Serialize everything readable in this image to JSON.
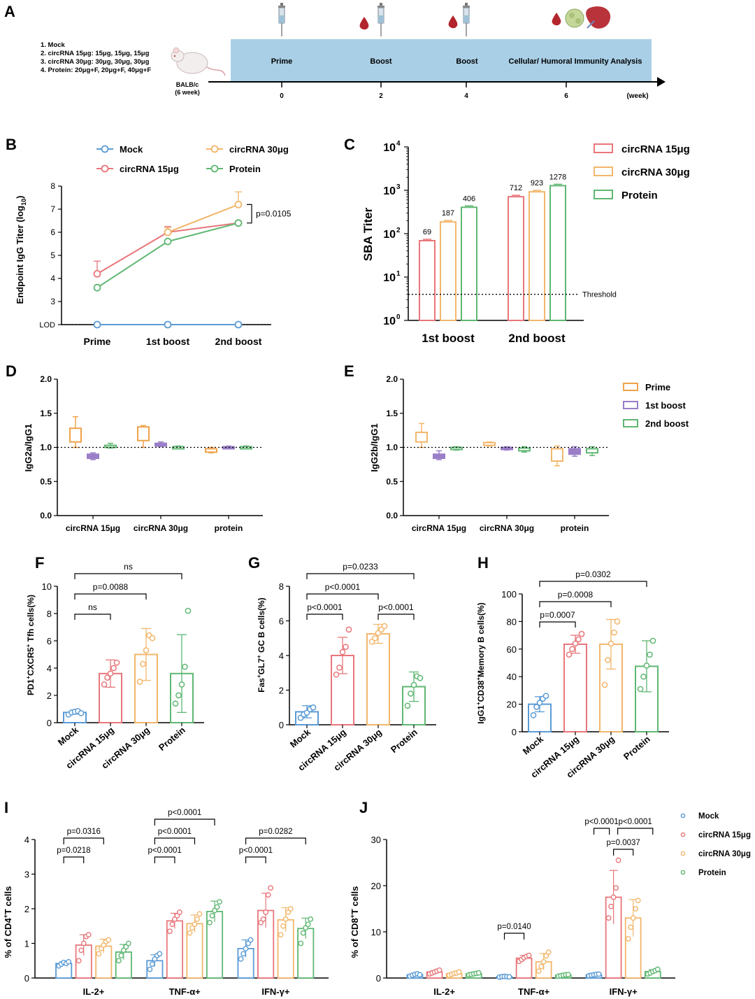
{
  "colors": {
    "mock": "#5b9bd5",
    "c15": "#e8767a",
    "c30": "#f2b66b",
    "protein": "#5fb772",
    "prime": "#f0a34a",
    "boost1": "#9a7ec8",
    "boost2": "#5fb772",
    "timeline": "#a9cfe6"
  },
  "panel_a": {
    "letter": "A",
    "groups": [
      "1. Mock",
      "2. circRNA 15μg: 15μg, 15μg, 15μg",
      "3. circRNA 30μg: 30μg, 30μg, 30μg",
      "4. Protein: 20μg+F, 20μg+F, 40μg+F"
    ],
    "mouse_line1": "BALB/c",
    "mouse_line2": "(6 week)",
    "stages": [
      "Prime",
      "Boost",
      "Boost",
      "Cellular/ Humoral Immunity Analysis"
    ],
    "weeks": [
      "0",
      "2",
      "4",
      "6"
    ],
    "unit": "(week)",
    "icons": [
      "syringe-icon",
      "blood-drop-icon",
      "spleen-icon",
      "lymph-node-icon"
    ]
  },
  "chart_data": [
    {
      "panel": "B",
      "type": "line",
      "x": [
        "Prime",
        "1st boost",
        "2nd boost"
      ],
      "ylabel": "Endpoint IgG Titer (log10)",
      "ylim": [
        2,
        8
      ],
      "lod_label": "LOD",
      "yticks": [
        "3",
        "4",
        "5",
        "6",
        "7",
        "8"
      ],
      "series": [
        {
          "name": "Mock",
          "key": "mock",
          "values": [
            2,
            2,
            2
          ],
          "err": [
            0,
            0,
            0
          ]
        },
        {
          "name": "circRNA 15μg",
          "key": "c15",
          "values": [
            4.2,
            6.0,
            6.4
          ],
          "err": [
            0.55,
            0.25,
            0.05
          ]
        },
        {
          "name": "circRNA 30μg",
          "key": "c30",
          "values": [
            null,
            6.0,
            7.2
          ],
          "err": [
            0,
            0.2,
            0.55
          ]
        },
        {
          "name": "Protein",
          "key": "protein",
          "values": [
            3.6,
            5.6,
            6.4
          ],
          "err": [
            0,
            0,
            0
          ]
        }
      ],
      "annotations": [
        "p=0.0105"
      ]
    },
    {
      "panel": "C",
      "type": "bar",
      "scale": "log",
      "categories": [
        "1st boost",
        "2nd boost"
      ],
      "ylabel": "SBA Titer",
      "ylim": [
        1,
        10000
      ],
      "yticks": [
        "10",
        "10",
        "10",
        "10",
        "10"
      ],
      "yexp": [
        "0",
        "1",
        "2",
        "3",
        "4"
      ],
      "threshold": 4,
      "threshold_label": "Threshold",
      "series": [
        {
          "name": "circRNA 15μg",
          "key": "c15",
          "values": [
            69,
            712
          ],
          "labels": [
            "69",
            "712"
          ]
        },
        {
          "name": "circRNA 30μg",
          "key": "c30",
          "values": [
            187,
            923
          ],
          "labels": [
            "187",
            "923"
          ]
        },
        {
          "name": "Protein",
          "key": "protein",
          "values": [
            406,
            1278
          ],
          "labels": [
            "406",
            "1278"
          ]
        }
      ]
    },
    {
      "panel": "D",
      "type": "box",
      "categories": [
        "circRNA 15μg",
        "circRNA 30μg",
        "protein"
      ],
      "ylabel": "IgG2a/IgG1",
      "ylim": [
        0,
        2
      ],
      "yticks": [
        "0.0",
        "0.5",
        "1.0",
        "1.5",
        "2.0"
      ],
      "reference": 1.0,
      "series": [
        {
          "name": "Prime",
          "key": "prime",
          "boxes": [
            [
              1.0,
              1.08,
              1.28,
              1.45
            ],
            [
              1.0,
              1.1,
              1.3,
              1.32
            ],
            [
              0.92,
              0.93,
              0.98,
              1.0
            ]
          ]
        },
        {
          "name": "1st boost",
          "key": "boost1",
          "boxes": [
            [
              0.82,
              0.84,
              0.9,
              0.92
            ],
            [
              1.01,
              1.02,
              1.06,
              1.08
            ],
            [
              0.99,
              1.0,
              1.01,
              1.02
            ]
          ]
        },
        {
          "name": "2nd boost",
          "key": "boost2",
          "boxes": [
            [
              0.99,
              1.0,
              1.03,
              1.06
            ],
            [
              0.99,
              1.0,
              1.01,
              1.02
            ],
            [
              0.99,
              1.0,
              1.01,
              1.02
            ]
          ]
        }
      ]
    },
    {
      "panel": "E",
      "type": "box",
      "categories": [
        "circRNA 15μg",
        "circRNA 30μg",
        "protein"
      ],
      "ylabel": "IgG2b/IgG1",
      "ylim": [
        0,
        2
      ],
      "yticks": [
        "0.0",
        "0.5",
        "1.0",
        "1.5",
        "2.0"
      ],
      "reference": 1.0,
      "series": [
        {
          "name": "Prime",
          "key": "c30",
          "boxes": [
            [
              1.0,
              1.08,
              1.22,
              1.35
            ],
            [
              1.02,
              1.03,
              1.07,
              1.08
            ],
            [
              0.73,
              0.8,
              0.98,
              1.02
            ]
          ]
        },
        {
          "name": "1st boost",
          "key": "boost1",
          "boxes": [
            [
              0.82,
              0.84,
              0.9,
              0.95
            ],
            [
              0.96,
              0.97,
              1.0,
              1.01
            ],
            [
              0.87,
              0.9,
              0.98,
              1.01
            ]
          ]
        },
        {
          "name": "2nd boost",
          "key": "boost2",
          "boxes": [
            [
              0.96,
              0.97,
              1.0,
              1.01
            ],
            [
              0.93,
              0.95,
              0.99,
              1.01
            ],
            [
              0.88,
              0.92,
              0.98,
              1.01
            ]
          ]
        }
      ]
    },
    {
      "panel": "F",
      "type": "bar",
      "categories": [
        "Mock",
        "circRNA 15μg",
        "circRNA 30μg",
        "Protein"
      ],
      "keys": [
        "mock",
        "c15",
        "c30",
        "protein"
      ],
      "ylabel": "PD1+CXCR5+ Tfh cells(%)",
      "ylim": [
        0,
        10
      ],
      "yticks": [
        "0",
        "2",
        "4",
        "6",
        "8",
        "10"
      ],
      "values": [
        0.75,
        3.6,
        5.0,
        3.6
      ],
      "err": [
        0.12,
        1.0,
        1.9,
        2.85
      ],
      "points": [
        [
          0.6,
          0.75,
          0.8,
          0.85,
          0.7
        ],
        [
          2.8,
          3.3,
          3.6,
          4.0,
          4.4
        ],
        [
          3.0,
          4.3,
          5.3,
          6.4,
          6.2
        ],
        [
          1.4,
          2.0,
          2.8,
          4.1,
          8.2
        ]
      ],
      "comparisons": [
        {
          "a": 0,
          "b": 1,
          "label": "ns"
        },
        {
          "a": 0,
          "b": 2,
          "label": "p=0.0088"
        },
        {
          "a": 0,
          "b": 3,
          "label": "ns"
        }
      ]
    },
    {
      "panel": "G",
      "type": "bar",
      "categories": [
        "Mock",
        "circRNA 15μg",
        "circRNA 30μg",
        "Protein"
      ],
      "keys": [
        "mock",
        "c15",
        "c30",
        "protein"
      ],
      "ylabel": "Fas+GL7+ GC B cells(%)",
      "ylim": [
        0,
        8
      ],
      "yticks": [
        "0",
        "2",
        "4",
        "6",
        "8"
      ],
      "values": [
        0.75,
        4.0,
        5.25,
        2.2
      ],
      "err": [
        0.35,
        1.05,
        0.55,
        0.85
      ],
      "points": [
        [
          0.4,
          0.6,
          0.7,
          0.9,
          1.0
        ],
        [
          2.9,
          3.3,
          4.2,
          4.5,
          5.5
        ],
        [
          4.8,
          5.0,
          5.3,
          5.5,
          5.7
        ],
        [
          1.1,
          1.8,
          2.3,
          2.8,
          2.7
        ]
      ],
      "comparisons": [
        {
          "a": 0,
          "b": 1,
          "label": "p<0.0001"
        },
        {
          "a": 0,
          "b": 2,
          "label": "p<0.0001"
        },
        {
          "a": 2,
          "b": 3,
          "label": "p<0.0001"
        },
        {
          "a": 0,
          "b": 3,
          "label": "p=0.0233"
        }
      ]
    },
    {
      "panel": "H",
      "type": "bar",
      "categories": [
        "Mock",
        "circRNA 15μg",
        "circRNA 30μg",
        "Protein"
      ],
      "keys": [
        "mock",
        "c15",
        "c30",
        "protein"
      ],
      "ylabel": "IgG1+CD38+ Memory B cells(%)",
      "ylim": [
        0,
        100
      ],
      "yticks": [
        "0",
        "20",
        "40",
        "60",
        "80",
        "100"
      ],
      "values": [
        20,
        63.5,
        63.5,
        47.5
      ],
      "err": [
        5.5,
        6.5,
        18,
        18.5
      ],
      "points": [
        [
          12,
          18,
          21,
          24,
          26
        ],
        [
          56,
          60,
          64,
          67,
          71
        ],
        [
          34,
          52,
          64,
          72,
          80
        ],
        [
          31,
          40,
          48,
          56,
          66
        ]
      ],
      "comparisons": [
        {
          "a": 0,
          "b": 1,
          "label": "p=0.0007"
        },
        {
          "a": 0,
          "b": 2,
          "label": "p=0.0008"
        },
        {
          "a": 0,
          "b": 3,
          "label": "p=0.0302"
        }
      ]
    },
    {
      "panel": "I",
      "type": "grouped-bar",
      "categories": [
        "IL-2+",
        "TNF-α+",
        "IFN-γ+"
      ],
      "ylabel": "% of CD4+T cells",
      "ylim": [
        0,
        4
      ],
      "yticks": [
        "0",
        "1",
        "2",
        "3",
        "4"
      ],
      "series": [
        {
          "name": "Mock",
          "key": "mock",
          "values": [
            0.42,
            0.5,
            0.85
          ],
          "err": [
            0.05,
            0.17,
            0.25
          ],
          "points": [
            [
              0.35,
              0.4,
              0.45,
              0.42,
              0.47
            ],
            [
              0.25,
              0.4,
              0.55,
              0.65,
              0.7
            ],
            [
              0.55,
              0.7,
              0.85,
              1.0,
              1.1
            ]
          ]
        },
        {
          "name": "circRNA 15μg",
          "key": "c15",
          "values": [
            0.95,
            1.65,
            1.95
          ],
          "err": [
            0.3,
            0.22,
            0.5
          ],
          "points": [
            [
              0.5,
              0.8,
              1.0,
              1.2,
              1.25
            ],
            [
              1.35,
              1.55,
              1.7,
              1.8,
              1.9
            ],
            [
              1.6,
              1.7,
              1.9,
              2.4,
              2.6
            ]
          ]
        },
        {
          "name": "circRNA 30μg",
          "key": "c30",
          "values": [
            0.92,
            1.57,
            1.68
          ],
          "err": [
            0.2,
            0.25,
            0.35
          ],
          "points": [
            [
              0.7,
              0.85,
              0.95,
              1.05,
              1.1
            ],
            [
              1.3,
              1.45,
              1.55,
              1.7,
              1.85
            ],
            [
              1.25,
              1.5,
              1.7,
              1.9,
              2.0
            ]
          ]
        },
        {
          "name": "Protein",
          "key": "protein",
          "values": [
            0.75,
            1.92,
            1.43
          ],
          "err": [
            0.22,
            0.3,
            0.3
          ],
          "points": [
            [
              0.5,
              0.65,
              0.8,
              0.9,
              1.0
            ],
            [
              1.6,
              1.8,
              1.95,
              2.05,
              2.2
            ],
            [
              1.0,
              1.3,
              1.45,
              1.55,
              1.7
            ]
          ]
        }
      ],
      "comparisons": [
        {
          "cat": 0,
          "a": 0,
          "b": 1,
          "label": "p=0.0218"
        },
        {
          "cat": 0,
          "a": 0,
          "b": 2,
          "label": "p=0.0316"
        },
        {
          "cat": 1,
          "a": 0,
          "b": 1,
          "label": "p<0.0001"
        },
        {
          "cat": 1,
          "a": 0,
          "b": 2,
          "label": "p<0.0001"
        },
        {
          "cat": 1,
          "a": 0,
          "b": 3,
          "label": "p<0.0001"
        },
        {
          "cat": 2,
          "a": 0,
          "b": 1,
          "label": "p<0.0001"
        },
        {
          "cat": 2,
          "a": 0,
          "b": 3,
          "label": "p=0.0282"
        }
      ]
    },
    {
      "panel": "J",
      "type": "grouped-bar",
      "categories": [
        "IL-2+",
        "TNF-α+",
        "IFN-γ+"
      ],
      "ylabel": "% of CD8+T cells",
      "ylim": [
        0,
        30
      ],
      "yticks": [
        "0",
        "10",
        "20",
        "30"
      ],
      "legend": [
        "Mock",
        "circRNA 15μg",
        "circRNA 30μg",
        "Protein"
      ],
      "series": [
        {
          "name": "Mock",
          "key": "mock",
          "values": [
            0.7,
            0.3,
            0.7
          ],
          "err": [
            0.2,
            0.1,
            0.15
          ],
          "points": [
            [
              0.4,
              0.6,
              0.8,
              0.9,
              0.7
            ],
            [
              0.2,
              0.3,
              0.35,
              0.3,
              0.25
            ],
            [
              0.5,
              0.6,
              0.7,
              0.8,
              0.85
            ]
          ]
        },
        {
          "name": "circRNA 15μg",
          "key": "c15",
          "values": [
            1.3,
            4.3,
            17.5
          ],
          "err": [
            0.3,
            0.6,
            5.8
          ],
          "points": [
            [
              0.9,
              1.1,
              1.3,
              1.5,
              1.7
            ],
            [
              3.6,
              4.0,
              4.4,
              4.7,
              4.9
            ],
            [
              13.0,
              15.5,
              17.5,
              19.5,
              25.5
            ]
          ]
        },
        {
          "name": "circRNA 30μg",
          "key": "c30",
          "values": [
            0.95,
            3.5,
            13.0
          ],
          "err": [
            0.3,
            1.8,
            4.0
          ],
          "points": [
            [
              0.6,
              0.8,
              1.0,
              1.1,
              1.3
            ],
            [
              1.5,
              2.5,
              3.5,
              4.8,
              5.6
            ],
            [
              8.5,
              11.0,
              13.0,
              15.0,
              16.8
            ]
          ]
        },
        {
          "name": "Protein",
          "key": "protein",
          "values": [
            0.9,
            0.6,
            1.4
          ],
          "err": [
            0.15,
            0.15,
            0.4
          ],
          "points": [
            [
              0.7,
              0.8,
              0.9,
              1.0,
              1.1
            ],
            [
              0.4,
              0.5,
              0.6,
              0.7,
              0.75
            ],
            [
              0.9,
              1.1,
              1.4,
              1.6,
              1.9
            ]
          ]
        }
      ],
      "comparisons": [
        {
          "cat": 1,
          "a": 0,
          "b": 1,
          "label": "p=0.0140"
        },
        {
          "cat": 2,
          "a": 0,
          "b": 1,
          "label": "p<0.0001"
        },
        {
          "cat": 2,
          "a": 1,
          "b": 2,
          "label": "p=0.0037"
        },
        {
          "cat": 2,
          "a": 1,
          "b": 3,
          "label": "p<0.0001"
        }
      ]
    }
  ]
}
